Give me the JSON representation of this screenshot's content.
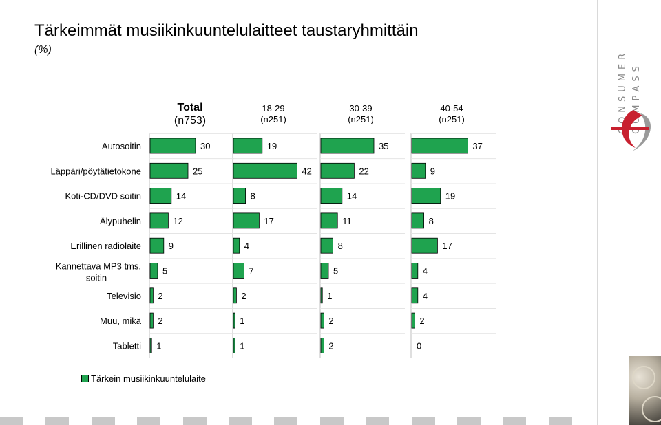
{
  "title": "Tärkeimmät musiikinkuuntelulaitteet taustaryhmittäin",
  "subtitle": "(%)",
  "logo_text": [
    "CONSUMER",
    "COMPASS"
  ],
  "colors": {
    "bar": "#1fa34f",
    "bar_stroke": "#000000",
    "axis": "#bfbfbf"
  },
  "chart_data": {
    "type": "bar",
    "orientation": "horizontal",
    "unit": "%",
    "categories": [
      "Autosoitin",
      "Läppäri/pöytätietokone",
      "Koti-CD/DVD soitin",
      "Älypuhelin",
      "Erillinen radiolaite",
      "Kannettava MP3 tms. soitin",
      "Televisio",
      "Muu, mikä",
      "Tabletti"
    ],
    "series": [
      {
        "name": "Total",
        "sample": "(n753)",
        "values": [
          30,
          25,
          14,
          12,
          9,
          5,
          2,
          2,
          1
        ]
      },
      {
        "name": "18-29",
        "sample": "(n251)",
        "values": [
          19,
          42,
          8,
          17,
          4,
          7,
          2,
          1,
          1
        ]
      },
      {
        "name": "30-39",
        "sample": "(n251)",
        "values": [
          35,
          22,
          14,
          11,
          8,
          5,
          1,
          2,
          2
        ]
      },
      {
        "name": "40-54",
        "sample": "(n251)",
        "values": [
          37,
          9,
          19,
          8,
          17,
          4,
          4,
          2,
          0
        ]
      }
    ],
    "legend": {
      "label": "Tärkein musiikinkuuntelulaite",
      "position": "bottom-left"
    },
    "grid": false
  }
}
